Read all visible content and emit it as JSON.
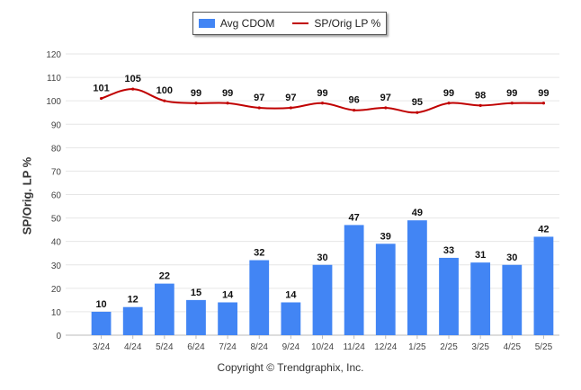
{
  "chart_data": {
    "type": "bar+line",
    "categories": [
      "3/24",
      "4/24",
      "5/24",
      "6/24",
      "7/24",
      "8/24",
      "9/24",
      "10/24",
      "11/24",
      "12/24",
      "1/25",
      "2/25",
      "3/25",
      "4/25",
      "5/25"
    ],
    "series": [
      {
        "name": "Avg CDOM",
        "type": "bar",
        "color": "#4285f4",
        "values": [
          10,
          12,
          22,
          15,
          14,
          32,
          14,
          30,
          47,
          39,
          49,
          33,
          31,
          30,
          42
        ]
      },
      {
        "name": "SP/Orig LP %",
        "type": "line",
        "color": "#c00000",
        "values": [
          101,
          105,
          100,
          99,
          99,
          97,
          97,
          99,
          96,
          97,
          95,
          99,
          98,
          99,
          99
        ]
      }
    ],
    "ylabel": "SP/Orig. LP %",
    "ylim": [
      0,
      120
    ],
    "yticks": [
      0,
      10,
      20,
      30,
      40,
      50,
      60,
      70,
      80,
      90,
      100,
      110,
      120
    ],
    "grid": true,
    "legend": "top-center",
    "data_labels": true
  },
  "footer": "Copyright © Trendgraphix, Inc."
}
